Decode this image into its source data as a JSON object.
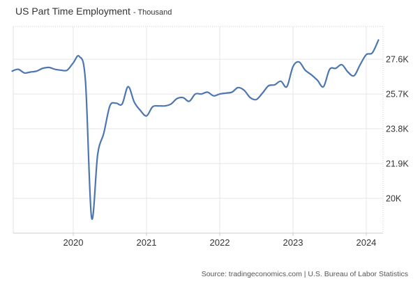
{
  "header": {
    "title": "US Part Time Employment",
    "unit_label": "- Thousand"
  },
  "source": {
    "text": "Source: tradingeconomics.com | U.S. Bureau of Labor Statistics"
  },
  "chart_data": {
    "type": "line",
    "title": "US Part Time Employment",
    "ylabel": "Thousand",
    "frequency": "monthly",
    "line_color": "#4d76b0",
    "grid_color": "#e6e6e6",
    "border_color": "#cccccc",
    "axis_label_color": "#333333",
    "legend": "none",
    "grid": "on",
    "xlim": [
      2019.181,
      2024.229
    ],
    "ylim": [
      18100,
      29390
    ],
    "x_ticks": [
      {
        "value": 2020,
        "label": "2020"
      },
      {
        "value": 2021,
        "label": "2021"
      },
      {
        "value": 2022,
        "label": "2022"
      },
      {
        "value": 2023,
        "label": "2023"
      },
      {
        "value": 2024,
        "label": "2024"
      }
    ],
    "y_ticks": [
      {
        "value": 27600,
        "label": "27.6K"
      },
      {
        "value": 25700,
        "label": "25.7K"
      },
      {
        "value": 23800,
        "label": "23.8K"
      },
      {
        "value": 21900,
        "label": "21.9K"
      },
      {
        "value": 20000,
        "label": "20K"
      }
    ],
    "months": [
      "2019-03",
      "2019-04",
      "2019-05",
      "2019-06",
      "2019-07",
      "2019-08",
      "2019-09",
      "2019-10",
      "2019-11",
      "2019-12",
      "2020-01",
      "2020-02",
      "2020-03",
      "2020-04",
      "2020-05",
      "2020-06",
      "2020-07",
      "2020-08",
      "2020-09",
      "2020-10",
      "2020-11",
      "2020-12",
      "2021-01",
      "2021-02",
      "2021-03",
      "2021-04",
      "2021-05",
      "2021-06",
      "2021-07",
      "2021-08",
      "2021-09",
      "2021-10",
      "2021-11",
      "2021-12",
      "2022-01",
      "2022-02",
      "2022-03",
      "2022-04",
      "2022-05",
      "2022-06",
      "2022-07",
      "2022-08",
      "2022-09",
      "2022-10",
      "2022-11",
      "2022-12",
      "2023-01",
      "2023-02",
      "2023-03",
      "2023-04",
      "2023-05",
      "2023-06",
      "2023-07",
      "2023-08",
      "2023-09",
      "2023-10",
      "2023-11",
      "2023-12",
      "2024-01",
      "2024-02",
      "2024-03"
    ],
    "values": [
      26950,
      27050,
      26850,
      26900,
      26950,
      27100,
      27150,
      27050,
      27000,
      27000,
      27400,
      27750,
      26400,
      18950,
      22400,
      23550,
      25050,
      25200,
      25150,
      26100,
      25250,
      24800,
      24500,
      25000,
      25050,
      25050,
      25150,
      25450,
      25500,
      25300,
      25700,
      25700,
      25800,
      25600,
      25700,
      25750,
      25800,
      26050,
      25900,
      25500,
      25400,
      25750,
      26150,
      26200,
      26400,
      26100,
      27200,
      27450,
      27000,
      26750,
      26450,
      26100,
      27050,
      27100,
      27300,
      26900,
      26700,
      27300,
      27850,
      27950,
      28650
    ]
  }
}
